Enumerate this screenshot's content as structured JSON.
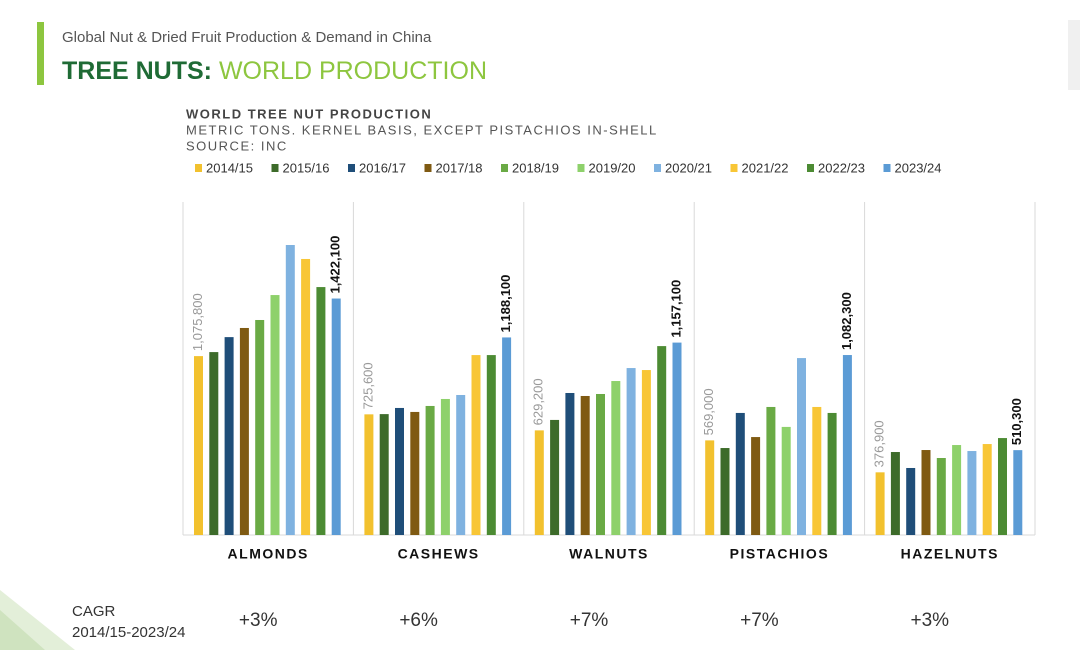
{
  "header": {
    "kicker": "Global Nut & Dried Fruit Production & Demand in China",
    "title_a": "TREE NUTS:",
    "title_b": "WORLD PRODUCTION"
  },
  "chart_data": {
    "type": "bar",
    "title": "WORLD TREE NUT PRODUCTION",
    "subtitle": "METRIC TONS. KERNEL BASIS, EXCEPT PISTACHIOS IN-SHELL",
    "source": "SOURCE: INC",
    "categories": [
      "ALMONDS",
      "CASHEWS",
      "WALNUTS",
      "PISTACHIOS",
      "HAZELNUTS"
    ],
    "series": [
      {
        "name": "2014/15",
        "color": "#f2c12e",
        "values": [
          1075800,
          725600,
          629200,
          569000,
          376900
        ],
        "value_labels": [
          "1,075,800",
          "725,600",
          "629,200",
          "569,000",
          "376,900"
        ]
      },
      {
        "name": "2015/16",
        "color": "#3d6b2a",
        "values": [
          1100000,
          727000,
          692000,
          523000,
          499000
        ]
      },
      {
        "name": "2016/17",
        "color": "#1f4e79",
        "values": [
          1190000,
          764000,
          854000,
          734000,
          403000
        ]
      },
      {
        "name": "2017/18",
        "color": "#7f5a12",
        "values": [
          1245000,
          740000,
          836000,
          589000,
          511000
        ]
      },
      {
        "name": "2018/19",
        "color": "#6aaa45",
        "values": [
          1293000,
          776000,
          848000,
          770000,
          463000
        ]
      },
      {
        "name": "2019/20",
        "color": "#8ed16b",
        "values": [
          1443000,
          818000,
          926000,
          650000,
          541000
        ]
      },
      {
        "name": "2020/21",
        "color": "#7fb2e0",
        "values": [
          1744000,
          842000,
          1004000,
          1064000,
          505000
        ]
      },
      {
        "name": "2021/22",
        "color": "#f8c636",
        "values": [
          1660000,
          1082000,
          992000,
          770000,
          547000
        ]
      },
      {
        "name": "2022/23",
        "color": "#4c8b33",
        "values": [
          1491000,
          1082000,
          1136000,
          734000,
          583000
        ]
      },
      {
        "name": "2023/24",
        "color": "#5b9bd5",
        "values": [
          1422100,
          1188100,
          1157100,
          1082300,
          510300
        ],
        "value_labels": [
          "1,422,100",
          "1,188,100",
          "1,157,100",
          "1,082,300",
          "510,300"
        ]
      }
    ]
  },
  "cagr": {
    "label": "CAGR",
    "period": "2014/15-2023/24",
    "values": [
      "+3%",
      "+6%",
      "+7%",
      "+7%",
      "+3%"
    ]
  }
}
